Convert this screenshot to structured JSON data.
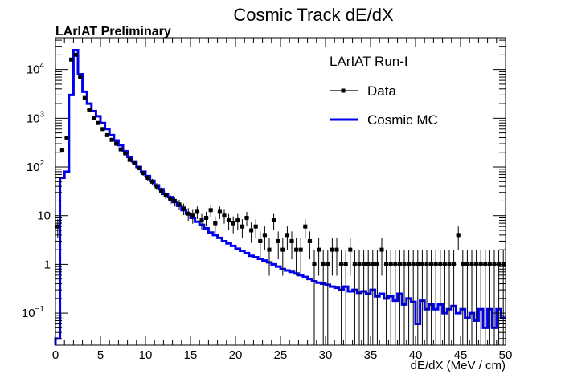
{
  "chart_data": {
    "type": "line",
    "title": "Cosmic Track dE/dX",
    "xlabel": "dE/dX (MeV / cm)",
    "ylabel": "",
    "watermark": "LArIAT Preliminary",
    "legend_header": "LArIAT Run-I",
    "legend_position": "top-right",
    "xlim": [
      0,
      50
    ],
    "ylim": [
      0.022,
      45000
    ],
    "y_scale": "log",
    "grid": false,
    "x_ticks": [
      "0",
      "5",
      "10",
      "15",
      "20",
      "25",
      "30",
      "35",
      "40",
      "45",
      "50"
    ],
    "y_ticks": [
      {
        "value": 0.1,
        "label": "10",
        "exp": "−1"
      },
      {
        "value": 1,
        "label": "1",
        "exp": ""
      },
      {
        "value": 10,
        "label": "10",
        "exp": ""
      },
      {
        "value": 100,
        "label": "10",
        "exp": "2"
      },
      {
        "value": 1000,
        "label": "10",
        "exp": "3"
      },
      {
        "value": 10000,
        "label": "10",
        "exp": "4"
      }
    ],
    "series": [
      {
        "name": "Cosmic MC",
        "style": "histogram",
        "color": "#0000ee",
        "points": [
          [
            0.25,
            0.03
          ],
          [
            0.75,
            60
          ],
          [
            1.25,
            80
          ],
          [
            1.75,
            3000
          ],
          [
            2.25,
            25000
          ],
          [
            2.75,
            8000
          ],
          [
            3.25,
            3500
          ],
          [
            3.75,
            2000
          ],
          [
            4.25,
            1400
          ],
          [
            4.75,
            1100
          ],
          [
            5.25,
            800
          ],
          [
            5.75,
            600
          ],
          [
            6.25,
            450
          ],
          [
            6.75,
            350
          ],
          [
            7.25,
            280
          ],
          [
            7.75,
            210
          ],
          [
            8.25,
            160
          ],
          [
            8.75,
            130
          ],
          [
            9.25,
            100
          ],
          [
            9.75,
            80
          ],
          [
            10.25,
            65
          ],
          [
            10.75,
            52
          ],
          [
            11.25,
            42
          ],
          [
            11.75,
            35
          ],
          [
            12.25,
            28
          ],
          [
            12.75,
            24
          ],
          [
            13.25,
            19
          ],
          [
            13.75,
            16
          ],
          [
            14.25,
            13
          ],
          [
            14.75,
            11
          ],
          [
            15.25,
            9
          ],
          [
            15.75,
            7.5
          ],
          [
            16.25,
            6.5
          ],
          [
            16.75,
            5.5
          ],
          [
            17.25,
            4.5
          ],
          [
            17.75,
            4
          ],
          [
            18.25,
            3.5
          ],
          [
            18.75,
            3
          ],
          [
            19.25,
            2.7
          ],
          [
            19.75,
            2.4
          ],
          [
            20.25,
            2.1
          ],
          [
            20.75,
            1.9
          ],
          [
            21.25,
            1.7
          ],
          [
            21.75,
            1.5
          ],
          [
            22.25,
            1.4
          ],
          [
            22.75,
            1.3
          ],
          [
            23.25,
            1.2
          ],
          [
            23.75,
            1.1
          ],
          [
            24.25,
            1
          ],
          [
            24.75,
            0.9
          ],
          [
            25.25,
            0.8
          ],
          [
            25.75,
            0.75
          ],
          [
            26.25,
            0.7
          ],
          [
            26.75,
            0.65
          ],
          [
            27.25,
            0.6
          ],
          [
            27.75,
            0.55
          ],
          [
            28.25,
            0.5
          ],
          [
            28.75,
            0.45
          ],
          [
            29.25,
            0.42
          ],
          [
            29.75,
            0.4
          ],
          [
            30.25,
            0.38
          ],
          [
            30.75,
            0.35
          ],
          [
            31.25,
            0.33
          ],
          [
            31.75,
            0.3
          ],
          [
            32.25,
            0.35
          ],
          [
            32.75,
            0.28
          ],
          [
            33.25,
            0.3
          ],
          [
            33.75,
            0.26
          ],
          [
            34.25,
            0.28
          ],
          [
            34.75,
            0.25
          ],
          [
            35.25,
            0.3
          ],
          [
            35.75,
            0.22
          ],
          [
            36.25,
            0.25
          ],
          [
            36.75,
            0.2
          ],
          [
            37.25,
            0.22
          ],
          [
            37.75,
            0.18
          ],
          [
            38.25,
            0.25
          ],
          [
            38.75,
            0.15
          ],
          [
            39.25,
            0.2
          ],
          [
            39.75,
            0.17
          ],
          [
            40.25,
            0.06
          ],
          [
            40.75,
            0.18
          ],
          [
            41.25,
            0.12
          ],
          [
            41.75,
            0.15
          ],
          [
            42.25,
            0.12
          ],
          [
            42.75,
            0.15
          ],
          [
            43.25,
            0.1
          ],
          [
            43.75,
            0.12
          ],
          [
            44.25,
            0.14
          ],
          [
            44.75,
            0.1
          ],
          [
            45.25,
            0.12
          ],
          [
            45.75,
            0.08
          ],
          [
            46.25,
            0.1
          ],
          [
            46.75,
            0.07
          ],
          [
            47.25,
            0.12
          ],
          [
            47.75,
            0.05
          ],
          [
            48.25,
            0.12
          ],
          [
            48.75,
            0.05
          ],
          [
            49.25,
            0.12
          ],
          [
            49.75,
            0.08
          ]
        ]
      },
      {
        "name": "Data",
        "style": "markers",
        "color": "#000000",
        "points": [
          [
            0.25,
            6
          ],
          [
            0.75,
            220
          ],
          [
            1.25,
            400
          ],
          [
            1.75,
            16000
          ],
          [
            2.25,
            20000
          ],
          [
            2.75,
            7000
          ],
          [
            3.25,
            2600
          ],
          [
            3.75,
            1500
          ],
          [
            4.25,
            1000
          ],
          [
            4.75,
            800
          ],
          [
            5.25,
            600
          ],
          [
            5.75,
            450
          ],
          [
            6.25,
            360
          ],
          [
            6.75,
            300
          ],
          [
            7.25,
            230
          ],
          [
            7.75,
            190
          ],
          [
            8.25,
            140
          ],
          [
            8.75,
            120
          ],
          [
            9.25,
            95
          ],
          [
            9.75,
            75
          ],
          [
            10.25,
            60
          ],
          [
            10.75,
            50
          ],
          [
            11.25,
            40
          ],
          [
            11.75,
            32
          ],
          [
            12.25,
            27
          ],
          [
            12.75,
            22
          ],
          [
            13.25,
            20
          ],
          [
            13.75,
            17
          ],
          [
            14.25,
            14
          ],
          [
            14.75,
            11
          ],
          [
            15.25,
            10
          ],
          [
            15.75,
            12
          ],
          [
            16.25,
            8
          ],
          [
            16.75,
            9
          ],
          [
            17.25,
            13
          ],
          [
            17.75,
            7
          ],
          [
            18.25,
            12
          ],
          [
            18.75,
            10
          ],
          [
            19.25,
            8
          ],
          [
            19.75,
            7
          ],
          [
            20.25,
            8
          ],
          [
            20.75,
            6
          ],
          [
            21.25,
            9
          ],
          [
            21.75,
            5
          ],
          [
            22.25,
            6
          ],
          [
            22.75,
            3
          ],
          [
            23.25,
            4
          ],
          [
            23.75,
            2
          ],
          [
            24.25,
            8
          ],
          [
            24.75,
            3
          ],
          [
            25.25,
            2
          ],
          [
            25.75,
            4
          ],
          [
            26.25,
            3
          ],
          [
            26.75,
            2
          ],
          [
            27.25,
            2
          ],
          [
            27.75,
            6
          ],
          [
            28.25,
            3
          ],
          [
            28.75,
            1
          ],
          [
            29.25,
            2
          ],
          [
            29.75,
            1
          ],
          [
            30.25,
            1
          ],
          [
            30.75,
            2
          ],
          [
            31.25,
            2
          ],
          [
            31.75,
            1
          ],
          [
            32.25,
            1
          ],
          [
            32.75,
            2
          ],
          [
            33.25,
            1
          ],
          [
            33.75,
            1
          ],
          [
            34.25,
            1
          ],
          [
            34.75,
            1
          ],
          [
            35.25,
            1
          ],
          [
            35.75,
            1
          ],
          [
            36.25,
            2
          ],
          [
            36.75,
            1
          ],
          [
            37.25,
            1
          ],
          [
            37.75,
            1
          ],
          [
            38.25,
            1
          ],
          [
            38.75,
            1
          ],
          [
            39.25,
            1
          ],
          [
            39.75,
            1
          ],
          [
            40.25,
            1
          ],
          [
            40.75,
            1
          ],
          [
            41.25,
            1
          ],
          [
            41.75,
            1
          ],
          [
            42.25,
            1
          ],
          [
            42.75,
            1
          ],
          [
            43.25,
            1
          ],
          [
            43.75,
            1
          ],
          [
            44.25,
            1
          ],
          [
            44.75,
            4
          ],
          [
            45.25,
            1
          ],
          [
            45.75,
            1
          ],
          [
            46.25,
            1
          ],
          [
            46.75,
            1
          ],
          [
            47.25,
            1
          ],
          [
            47.75,
            1
          ],
          [
            48.25,
            1
          ],
          [
            48.75,
            1
          ],
          [
            49.25,
            1
          ],
          [
            49.75,
            1
          ]
        ]
      }
    ]
  }
}
